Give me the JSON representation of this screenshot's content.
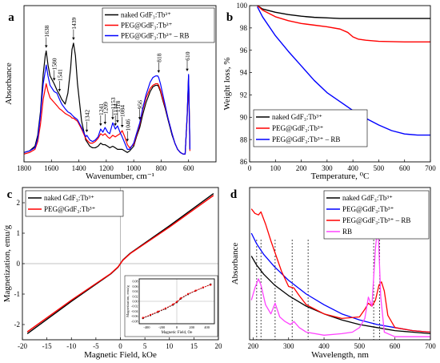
{
  "chart_data": [
    {
      "id": "a",
      "panel_letter": "a",
      "type": "line",
      "title": "",
      "xlabel": "Wavenumber, cm⁻¹",
      "ylabel": "Absorbance",
      "xlim": [
        1800,
        400
      ],
      "ylim": [
        0,
        1
      ],
      "x_reversed": true,
      "grid": false,
      "legend_position": "top-right",
      "xticks": [
        1800,
        1600,
        1400,
        1200,
        1000,
        800,
        600
      ],
      "yticks": [],
      "series": [
        {
          "name": "naked GdF₃:Tb³⁺",
          "color": "#000000",
          "x": [
            1800,
            1760,
            1720,
            1700,
            1680,
            1660,
            1645,
            1638,
            1625,
            1610,
            1580,
            1560,
            1541,
            1525,
            1500,
            1480,
            1460,
            1450,
            1439,
            1425,
            1410,
            1380,
            1350,
            1342,
            1320,
            1300,
            1280,
            1260,
            1241,
            1225,
            1209,
            1190,
            1175,
            1153,
            1134,
            1118,
            1100,
            1084,
            1065,
            1046,
            1030,
            1000,
            980,
            956,
            935,
            910,
            880,
            860,
            840,
            825,
            818,
            805,
            790,
            770,
            750,
            720,
            700,
            680,
            660,
            640,
            625,
            610,
            600,
            590
          ],
          "y": [
            0.06,
            0.07,
            0.1,
            0.17,
            0.32,
            0.56,
            0.68,
            0.71,
            0.62,
            0.55,
            0.5,
            0.46,
            0.43,
            0.4,
            0.37,
            0.44,
            0.6,
            0.72,
            0.76,
            0.68,
            0.5,
            0.26,
            0.14,
            0.13,
            0.1,
            0.09,
            0.09,
            0.1,
            0.12,
            0.11,
            0.11,
            0.1,
            0.09,
            0.1,
            0.09,
            0.08,
            0.08,
            0.08,
            0.07,
            0.06,
            0.07,
            0.1,
            0.16,
            0.22,
            0.3,
            0.38,
            0.45,
            0.48,
            0.49,
            0.49,
            0.48,
            0.45,
            0.4,
            0.34,
            0.27,
            0.17,
            0.12,
            0.08,
            0.06,
            0.05,
            0.05,
            0.3,
            0.55,
            0.08
          ]
        },
        {
          "name": "PEG@GdF₃:Tb³⁺",
          "color": "#ff0000",
          "x": [
            1800,
            1760,
            1720,
            1700,
            1680,
            1660,
            1645,
            1638,
            1625,
            1610,
            1580,
            1560,
            1541,
            1525,
            1500,
            1480,
            1460,
            1450,
            1439,
            1425,
            1410,
            1380,
            1350,
            1342,
            1320,
            1300,
            1280,
            1260,
            1241,
            1225,
            1209,
            1190,
            1175,
            1153,
            1134,
            1118,
            1100,
            1084,
            1065,
            1046,
            1030,
            1000,
            980,
            956,
            935,
            910,
            880,
            860,
            840,
            825,
            818,
            805,
            790,
            770,
            750,
            720,
            700,
            680,
            660,
            640,
            625,
            610,
            600,
            590
          ],
          "y": [
            0.05,
            0.06,
            0.08,
            0.13,
            0.24,
            0.4,
            0.47,
            0.5,
            0.45,
            0.41,
            0.38,
            0.36,
            0.34,
            0.33,
            0.31,
            0.3,
            0.29,
            0.28,
            0.28,
            0.27,
            0.26,
            0.21,
            0.15,
            0.14,
            0.12,
            0.12,
            0.13,
            0.15,
            0.18,
            0.17,
            0.18,
            0.16,
            0.15,
            0.17,
            0.16,
            0.17,
            0.18,
            0.2,
            0.16,
            0.11,
            0.09,
            0.11,
            0.17,
            0.24,
            0.33,
            0.41,
            0.47,
            0.49,
            0.5,
            0.5,
            0.49,
            0.46,
            0.41,
            0.35,
            0.28,
            0.18,
            0.12,
            0.08,
            0.06,
            0.05,
            0.05,
            0.29,
            0.54,
            0.07
          ]
        },
        {
          "name": "PEG@GdF₃:Tb³⁺ – RB",
          "color": "#0000ff",
          "x": [
            1800,
            1760,
            1720,
            1700,
            1680,
            1660,
            1645,
            1638,
            1625,
            1610,
            1580,
            1560,
            1541,
            1525,
            1500,
            1480,
            1460,
            1450,
            1439,
            1425,
            1410,
            1380,
            1350,
            1342,
            1320,
            1300,
            1280,
            1260,
            1241,
            1225,
            1209,
            1190,
            1175,
            1153,
            1134,
            1118,
            1100,
            1084,
            1065,
            1046,
            1030,
            1000,
            980,
            956,
            935,
            910,
            880,
            860,
            840,
            825,
            818,
            805,
            790,
            770,
            750,
            720,
            700,
            680,
            660,
            640,
            625,
            610,
            600,
            590
          ],
          "y": [
            0.06,
            0.07,
            0.09,
            0.15,
            0.3,
            0.5,
            0.58,
            0.62,
            0.55,
            0.49,
            0.45,
            0.44,
            0.4,
            0.37,
            0.34,
            0.32,
            0.31,
            0.3,
            0.29,
            0.28,
            0.27,
            0.22,
            0.16,
            0.17,
            0.14,
            0.13,
            0.14,
            0.16,
            0.21,
            0.19,
            0.22,
            0.19,
            0.18,
            0.25,
            0.21,
            0.23,
            0.19,
            0.16,
            0.12,
            0.08,
            0.08,
            0.12,
            0.18,
            0.25,
            0.34,
            0.43,
            0.51,
            0.54,
            0.55,
            0.55,
            0.54,
            0.5,
            0.44,
            0.36,
            0.28,
            0.18,
            0.12,
            0.08,
            0.06,
            0.05,
            0.05,
            0.3,
            0.56,
            0.08
          ]
        }
      ],
      "annotations": [
        {
          "label": "1638",
          "x": 1638,
          "y": 0.71
        },
        {
          "label": "1580",
          "x": 1580,
          "y": 0.5
        },
        {
          "label": "1541",
          "x": 1541,
          "y": 0.43
        },
        {
          "label": "1439",
          "x": 1439,
          "y": 0.76
        },
        {
          "label": "1342",
          "x": 1342,
          "y": 0.17
        },
        {
          "label": "1241",
          "x": 1241,
          "y": 0.21
        },
        {
          "label": "1209",
          "x": 1209,
          "y": 0.22
        },
        {
          "label": "1153",
          "x": 1153,
          "y": 0.25
        },
        {
          "label": "1134",
          "x": 1134,
          "y": 0.21
        },
        {
          "label": "1118",
          "x": 1118,
          "y": 0.23
        },
        {
          "label": "1084",
          "x": 1084,
          "y": 0.2
        },
        {
          "label": "1046",
          "x": 1046,
          "y": 0.11
        },
        {
          "label": "956",
          "x": 956,
          "y": 0.25
        },
        {
          "label": "818",
          "x": 818,
          "y": 0.55
        },
        {
          "label": "610",
          "x": 610,
          "y": 0.56
        }
      ]
    },
    {
      "id": "b",
      "panel_letter": "b",
      "type": "line",
      "title": "",
      "xlabel": "Temperature, ⁰C",
      "ylabel": "Weight loss, %",
      "xlim": [
        0,
        700
      ],
      "ylim": [
        86,
        100
      ],
      "grid": false,
      "legend_position": "bottom-left",
      "xticks": [
        0,
        100,
        200,
        300,
        400,
        500,
        600,
        700
      ],
      "yticks": [
        86,
        88,
        90,
        92,
        94,
        96,
        98,
        100
      ],
      "series": [
        {
          "name": "naked GdF₃:Tb³⁺",
          "color": "#000000",
          "x": [
            30,
            50,
            100,
            150,
            200,
            250,
            300,
            350,
            400,
            500,
            600,
            700
          ],
          "y": [
            100,
            99.7,
            99.4,
            99.2,
            99.05,
            98.95,
            98.9,
            98.85,
            98.85,
            98.85,
            98.85,
            98.85
          ]
        },
        {
          "name": "PEG@GdF₃:Tb³⁺",
          "color": "#ff0000",
          "x": [
            30,
            50,
            100,
            150,
            200,
            250,
            300,
            350,
            380,
            400,
            420,
            450,
            500,
            600,
            700
          ],
          "y": [
            100,
            99.6,
            99.0,
            98.65,
            98.4,
            98.25,
            98.1,
            97.9,
            97.6,
            97.2,
            97.0,
            96.9,
            96.8,
            96.75,
            96.75
          ]
        },
        {
          "name": "PEG@GdF₃:Tb³⁺ – RB",
          "color": "#0000ff",
          "x": [
            30,
            50,
            100,
            150,
            200,
            250,
            300,
            350,
            400,
            450,
            500,
            550,
            600,
            650,
            700
          ],
          "y": [
            99.9,
            99.0,
            97.3,
            95.9,
            94.6,
            93.3,
            92.2,
            91.4,
            90.6,
            89.9,
            89.3,
            88.8,
            88.5,
            88.4,
            88.4
          ]
        }
      ]
    },
    {
      "id": "c",
      "panel_letter": "c",
      "type": "line",
      "title": "",
      "xlabel": "Magnetic Field, kOe",
      "ylabel": "Magnetization, emu/g",
      "xlim": [
        -20,
        20
      ],
      "ylim": [
        -2.5,
        2.5
      ],
      "grid": false,
      "legend_position": "top-left",
      "xticks": [
        -20,
        -15,
        -10,
        -5,
        0,
        5,
        10,
        15,
        20
      ],
      "yticks": [
        -2,
        -1,
        0,
        1,
        2
      ],
      "series": [
        {
          "name": "naked GdF₃:Tb³⁺",
          "color": "#000000",
          "x": [
            -19,
            -10,
            -2,
            -0.5,
            0,
            0.5,
            2,
            10,
            19
          ],
          "y": [
            -2.3,
            -1.24,
            -0.34,
            -0.12,
            0,
            0.12,
            0.34,
            1.24,
            2.3
          ]
        },
        {
          "name": "PEG@GdF₃:Tb³⁺",
          "color": "#ff0000",
          "x": [
            -19,
            -10,
            -2,
            -0.5,
            0,
            0.5,
            2,
            10,
            19
          ],
          "y": [
            -2.24,
            -1.2,
            -0.33,
            -0.11,
            0,
            0.11,
            0.33,
            1.2,
            2.24
          ]
        }
      ],
      "inset": {
        "xlabel": "Magnetic Field, Oe",
        "ylabel": "Magnetization, emu/g",
        "xlim": [
          -500,
          500
        ],
        "ylim": [
          -0.09,
          0.09
        ],
        "xticks": [
          -400,
          -200,
          0,
          200,
          400
        ],
        "yticks": [
          -0.08,
          -0.06,
          -0.04,
          -0.02,
          0.0,
          0.02,
          0.04,
          0.06,
          0.08
        ],
        "series": [
          {
            "name": "naked GdF₃:Tb³⁺",
            "color": "#000000",
            "x": [
              -450,
              -350,
              -250,
              -150,
              -50,
              0,
              50,
              150,
              250,
              350,
              450
            ],
            "y": [
              -0.068,
              -0.056,
              -0.043,
              -0.03,
              -0.014,
              -0.004,
              0.01,
              0.028,
              0.042,
              0.055,
              0.068
            ]
          },
          {
            "name": "PEG@GdF₃:Tb³⁺",
            "color": "#ff0000",
            "x": [
              -450,
              -350,
              -250,
              -150,
              -50,
              0,
              50,
              150,
              250,
              350,
              450
            ],
            "y": [
              -0.066,
              -0.054,
              -0.041,
              -0.028,
              -0.012,
              -0.002,
              0.012,
              0.03,
              0.043,
              0.056,
              0.066
            ]
          }
        ]
      }
    },
    {
      "id": "d",
      "panel_letter": "d",
      "type": "line",
      "title": "",
      "xlabel": "Wavelength, nm",
      "ylabel": "Absorbance",
      "xlim": [
        190,
        700
      ],
      "ylim": [
        0,
        1
      ],
      "grid": false,
      "legend_position": "top-right",
      "xticks": [
        200,
        300,
        400,
        500,
        600,
        700
      ],
      "yticks": [],
      "series": [
        {
          "name": "naked GdF₃:Tb³⁺",
          "color": "#000000",
          "x": [
            195,
            210,
            230,
            260,
            300,
            350,
            400,
            450,
            500,
            550,
            600,
            650,
            700
          ],
          "y": [
            0.55,
            0.49,
            0.43,
            0.36,
            0.29,
            0.22,
            0.17,
            0.13,
            0.1,
            0.08,
            0.06,
            0.05,
            0.04
          ]
        },
        {
          "name": "PEG@GdF₃:Tb³⁺",
          "color": "#0000ff",
          "x": [
            195,
            210,
            230,
            260,
            300,
            350,
            400,
            450,
            500,
            550,
            600,
            650,
            700
          ],
          "y": [
            0.7,
            0.63,
            0.56,
            0.48,
            0.39,
            0.3,
            0.23,
            0.17,
            0.13,
            0.1,
            0.08,
            0.06,
            0.05
          ]
        },
        {
          "name": "PEG@GdF₃:Tb³⁺ – RB",
          "color": "#ff0000",
          "x": [
            195,
            205,
            215,
            222,
            235,
            250,
            265,
            280,
            300,
            315,
            330,
            350,
            400,
            450,
            500,
            515,
            525,
            535,
            545,
            555,
            562,
            570,
            580,
            600,
            650,
            700
          ],
          "y": [
            0.86,
            0.83,
            0.82,
            0.84,
            0.76,
            0.65,
            0.55,
            0.45,
            0.35,
            0.34,
            0.29,
            0.23,
            0.17,
            0.14,
            0.15,
            0.2,
            0.24,
            0.22,
            0.26,
            0.36,
            0.38,
            0.32,
            0.16,
            0.08,
            0.06,
            0.05
          ]
        },
        {
          "name": "RB",
          "color": "#ff44ff",
          "x": [
            195,
            205,
            215,
            222,
            235,
            250,
            262,
            275,
            290,
            305,
            315,
            330,
            350,
            400,
            450,
            480,
            500,
            515,
            525,
            535,
            545,
            552,
            560,
            570,
            600,
            650,
            700
          ],
          "y": [
            0.26,
            0.34,
            0.4,
            0.36,
            0.23,
            0.17,
            0.24,
            0.15,
            0.12,
            0.1,
            0.12,
            0.08,
            0.05,
            0.03,
            0.04,
            0.05,
            0.08,
            0.14,
            0.28,
            0.22,
            0.6,
            0.76,
            0.28,
            0.05,
            0.02,
            0.02,
            0.02
          ]
        }
      ],
      "marker_lines_x": [
        210,
        222,
        262,
        310,
        355,
        540,
        557
      ]
    }
  ]
}
